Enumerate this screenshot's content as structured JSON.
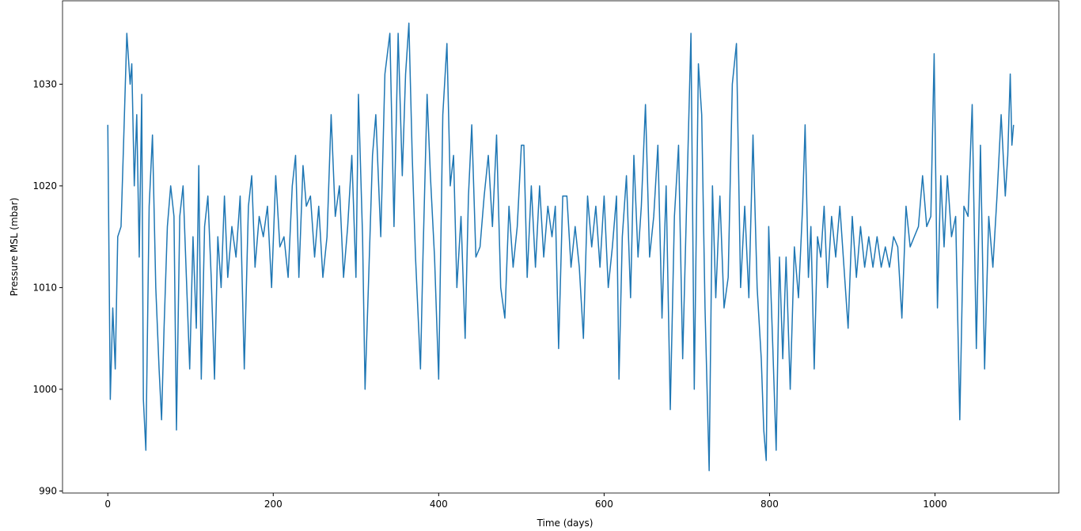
{
  "chart_data": {
    "type": "line",
    "xlabel": "Time (days)",
    "ylabel": "Pressure MSL (mbar)",
    "x": [
      0,
      3,
      6,
      9,
      12,
      16,
      19,
      23,
      27,
      29,
      32,
      35,
      38,
      41,
      43,
      46,
      50,
      54,
      58,
      62,
      65,
      68,
      72,
      76,
      80,
      83,
      87,
      91,
      95,
      99,
      103,
      107,
      110,
      113,
      117,
      121,
      125,
      129,
      133,
      137,
      141,
      145,
      150,
      155,
      160,
      165,
      170,
      174,
      178,
      183,
      188,
      193,
      198,
      203,
      208,
      213,
      218,
      223,
      227,
      231,
      236,
      240,
      245,
      250,
      255,
      260,
      265,
      270,
      275,
      280,
      285,
      290,
      295,
      300,
      303,
      308,
      311,
      315,
      320,
      324,
      330,
      335,
      341,
      346,
      351,
      356,
      360,
      364,
      368,
      372,
      378,
      381,
      386,
      390,
      395,
      400,
      405,
      410,
      414,
      418,
      422,
      427,
      432,
      436,
      440,
      445,
      450,
      455,
      460,
      465,
      470,
      475,
      480,
      485,
      490,
      495,
      500,
      503,
      507,
      512,
      517,
      522,
      527,
      532,
      537,
      541,
      545,
      550,
      555,
      560,
      565,
      570,
      575,
      580,
      585,
      590,
      595,
      600,
      605,
      610,
      615,
      618,
      622,
      627,
      632,
      636,
      641,
      645,
      650,
      655,
      660,
      665,
      670,
      675,
      680,
      685,
      690,
      695,
      700,
      705,
      709,
      714,
      718,
      722,
      727,
      731,
      735,
      740,
      745,
      750,
      755,
      760,
      765,
      770,
      775,
      780,
      785,
      790,
      793,
      796,
      799,
      804,
      808,
      812,
      816,
      820,
      825,
      830,
      835,
      840,
      843,
      847,
      850,
      854,
      858,
      862,
      866,
      870,
      875,
      880,
      885,
      890,
      895,
      900,
      905,
      910,
      915,
      920,
      925,
      930,
      935,
      940,
      945,
      950,
      955,
      960,
      965,
      970,
      975,
      980,
      985,
      990,
      995,
      999,
      1003,
      1007,
      1011,
      1015,
      1020,
      1025,
      1030,
      1035,
      1040,
      1045,
      1050,
      1055,
      1060,
      1065,
      1070,
      1075,
      1080,
      1085,
      1088,
      1091,
      1093,
      1095
    ],
    "series": [
      {
        "name": "Pressure MSL",
        "color": "#1f77b4",
        "values": [
          1026,
          999,
          1008,
          1002,
          1015,
          1016,
          1024,
          1035,
          1030,
          1032,
          1020,
          1027,
          1013,
          1029,
          999,
          994,
          1018,
          1025,
          1010,
          1002,
          997,
          1006,
          1016,
          1020,
          1017,
          996,
          1017,
          1020,
          1011,
          1002,
          1015,
          1006,
          1022,
          1001,
          1016,
          1019,
          1011,
          1001,
          1015,
          1010,
          1019,
          1011,
          1016,
          1013,
          1019,
          1002,
          1018,
          1021,
          1012,
          1017,
          1015,
          1018,
          1010,
          1021,
          1014,
          1015,
          1011,
          1020,
          1023,
          1011,
          1022,
          1018,
          1019,
          1013,
          1018,
          1011,
          1015,
          1027,
          1017,
          1020,
          1011,
          1016,
          1023,
          1011,
          1029,
          1015,
          1000,
          1010,
          1023,
          1027,
          1015,
          1031,
          1035,
          1016,
          1035,
          1021,
          1031,
          1036,
          1023,
          1013,
          1002,
          1013,
          1029,
          1021,
          1013,
          1001,
          1027,
          1034,
          1020,
          1023,
          1010,
          1017,
          1005,
          1019,
          1026,
          1013,
          1014,
          1019,
          1023,
          1016,
          1025,
          1010,
          1007,
          1018,
          1012,
          1016,
          1024,
          1024,
          1011,
          1020,
          1012,
          1020,
          1013,
          1018,
          1015,
          1018,
          1004,
          1019,
          1019,
          1012,
          1016,
          1012,
          1005,
          1019,
          1014,
          1018,
          1012,
          1019,
          1010,
          1014,
          1019,
          1001,
          1015,
          1021,
          1009,
          1023,
          1013,
          1018,
          1028,
          1013,
          1017,
          1024,
          1007,
          1020,
          998,
          1017,
          1024,
          1003,
          1019,
          1035,
          1000,
          1032,
          1027,
          1008,
          992,
          1020,
          1009,
          1019,
          1008,
          1011,
          1030,
          1034,
          1010,
          1018,
          1009,
          1025,
          1010,
          1003,
          996,
          993,
          1016,
          1004,
          994,
          1013,
          1003,
          1013,
          1000,
          1014,
          1009,
          1018,
          1026,
          1011,
          1016,
          1002,
          1015,
          1013,
          1018,
          1010,
          1017,
          1013,
          1018,
          1012,
          1006,
          1017,
          1011,
          1016,
          1012,
          1015,
          1012,
          1015,
          1012,
          1014,
          1012,
          1015,
          1014,
          1007,
          1018,
          1014,
          1015,
          1016,
          1021,
          1016,
          1017,
          1033,
          1008,
          1021,
          1014,
          1021,
          1015,
          1017,
          997,
          1018,
          1017,
          1028,
          1004,
          1024,
          1002,
          1017,
          1012,
          1019,
          1027,
          1019,
          1023,
          1031,
          1024,
          1026
        ]
      }
    ],
    "xlim": [
      -54.75,
      1149.75
    ],
    "xticks": [
      0,
      200,
      400,
      600,
      800,
      1000
    ],
    "ylim": [
      989.8,
      1038.2
    ],
    "yticks": [
      990,
      1000,
      1010,
      1020,
      1030
    ]
  }
}
